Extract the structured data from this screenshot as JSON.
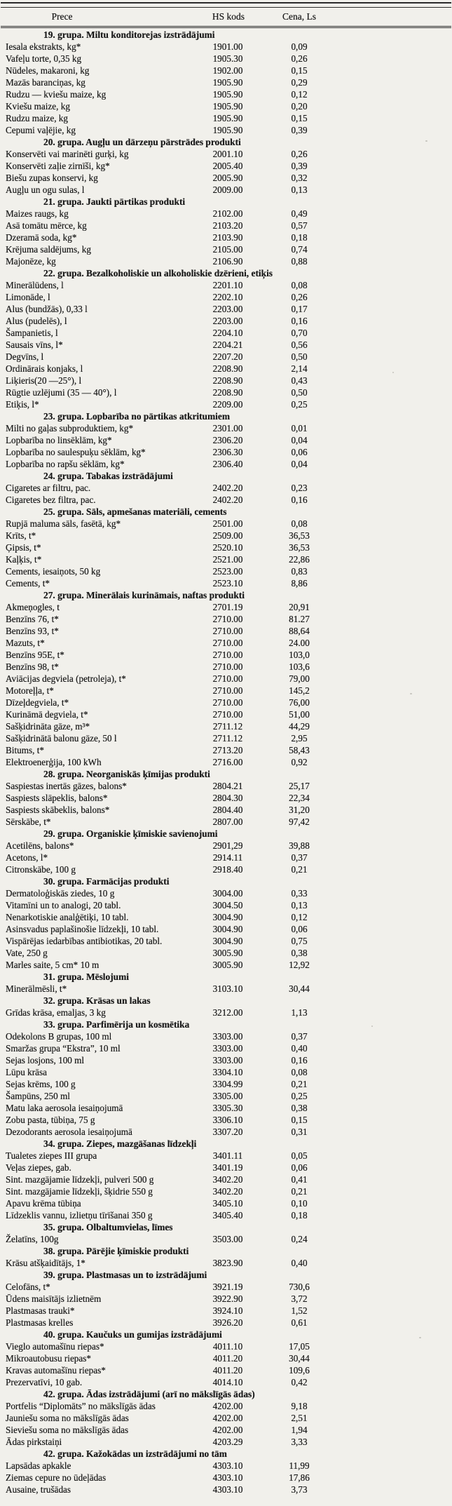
{
  "table": {
    "columns": {
      "product": "Prece",
      "hs": "HS kods",
      "price": "Cena, Ls"
    },
    "rows": [
      {
        "type": "group",
        "label": "19. grupa. Miltu konditorejas izstrādājumi"
      },
      {
        "type": "item",
        "name": "Iesala ekstrakts, kg*",
        "hs": "1901.00",
        "price": "0,09"
      },
      {
        "type": "item",
        "name": "Vafeļu torte, 0,35 kg",
        "hs": "1905.30",
        "price": "0,26"
      },
      {
        "type": "item",
        "name": "Nūdeles, makaroni, kg",
        "hs": "1902.00",
        "price": "0,15"
      },
      {
        "type": "item",
        "name": "Mazās baranciņas, kg",
        "hs": "1905.90",
        "price": "0,29"
      },
      {
        "type": "item",
        "name": "Rudzu — kviešu maize, kg",
        "hs": "1905.90",
        "price": "0,12"
      },
      {
        "type": "item",
        "name": "Kviešu maize, kg",
        "hs": "1905.90",
        "price": "0,20"
      },
      {
        "type": "item",
        "name": "Rudzu maize, kg",
        "hs": "1905.90",
        "price": "0,15"
      },
      {
        "type": "item",
        "name": "Cepumi vaļējie, kg",
        "hs": "1905.90",
        "price": "0,39"
      },
      {
        "type": "group",
        "label": "20. grupa. Augļu un dārzeņu pārstrādes produkti"
      },
      {
        "type": "item",
        "name": "Konservēti vai marinēti gurķi, kg",
        "hs": "2001.10",
        "price": "0,26"
      },
      {
        "type": "item",
        "name": "Konservēti zaļie zirnīši, kg*",
        "hs": "2005.40",
        "price": "0,39"
      },
      {
        "type": "item",
        "name": "Biešu zupas konservi, kg",
        "hs": "2005.90",
        "price": "0,32"
      },
      {
        "type": "item",
        "name": "Augļu un ogu sulas, l",
        "hs": "2009.00",
        "price": "0,13"
      },
      {
        "type": "group",
        "label": "21. grupa. Jaukti pārtikas produkti"
      },
      {
        "type": "item",
        "name": "Maizes raugs, kg",
        "hs": "2102.00",
        "price": "0,49"
      },
      {
        "type": "item",
        "name": "Asā tomātu mērce, kg",
        "hs": "2103.20",
        "price": "0,57"
      },
      {
        "type": "item",
        "name": "Dzeramā soda, kg*",
        "hs": "2103.90",
        "price": "0,18"
      },
      {
        "type": "item",
        "name": "Krējuma saldējums, kg",
        "hs": "2105.00",
        "price": "0,74"
      },
      {
        "type": "item",
        "name": "Majonēze, kg",
        "hs": "2106.90",
        "price": "0,88"
      },
      {
        "type": "group",
        "label": "22. grupa. Bezalkoholiskie un alkoholiskie dzērieni, etiķis"
      },
      {
        "type": "item",
        "name": "Minerālūdens, l",
        "hs": "2201.10",
        "price": "0,08"
      },
      {
        "type": "item",
        "name": "Limonāde, l",
        "hs": "2202.10",
        "price": "0,26"
      },
      {
        "type": "item",
        "name": "Alus (bundžās), 0,33 l",
        "hs": "2203.00",
        "price": "0,17"
      },
      {
        "type": "item",
        "name": "Alus (pudelēs), l",
        "hs": "2203.00",
        "price": "0,16"
      },
      {
        "type": "item",
        "name": "Šampanietis, l",
        "hs": "2204.10",
        "price": "0,70"
      },
      {
        "type": "item",
        "name": "Sausais vīns, l*",
        "hs": "2204.21",
        "price": "0,56"
      },
      {
        "type": "item",
        "name": "Degvīns, l",
        "hs": "2207.20",
        "price": "0,50"
      },
      {
        "type": "item",
        "name": "Ordinārais konjaks, l",
        "hs": "2208.90",
        "price": "2,14"
      },
      {
        "type": "item",
        "name": "Liķieris(20 —25°), l",
        "hs": "2208.90",
        "price": "0,43"
      },
      {
        "type": "item",
        "name": "Rūgtie uzlējumi (35 — 40°), l",
        "hs": "2208.90",
        "price": "0,50"
      },
      {
        "type": "item",
        "name": "Etiķis, l*",
        "hs": "2209.00",
        "price": "0,25"
      },
      {
        "type": "group",
        "label": "23. grupa. Lopbarība no pārtikas atkritumiem"
      },
      {
        "type": "item",
        "name": "Milti no gaļas subproduktiem, kg*",
        "hs": "2301.00",
        "price": "0,01"
      },
      {
        "type": "item",
        "name": "Lopbarība no linsēklām, kg*",
        "hs": "2306.20",
        "price": "0,04"
      },
      {
        "type": "item",
        "name": "Lopbarība no saulespuķu sēklām, kg*",
        "hs": "2306.30",
        "price": "0,06"
      },
      {
        "type": "item",
        "name": "Lopbarība no rapšu sēklām, kg*",
        "hs": "2306.40",
        "price": "0,04"
      },
      {
        "type": "group",
        "label": "24. grupa. Tabakas izstrādājumi"
      },
      {
        "type": "item",
        "name": "Cigaretes ar filtru, pac.",
        "hs": "2402.20",
        "price": "0,23"
      },
      {
        "type": "item",
        "name": "Cigaretes bez filtra, pac.",
        "hs": "2402.20",
        "price": "0,16"
      },
      {
        "type": "group",
        "label": "25. grupa. Sāls, apmešanas materiāli, cements"
      },
      {
        "type": "item",
        "name": "Rupjā maluma sāls, fasētā, kg*",
        "hs": "2501.00",
        "price": "0,08"
      },
      {
        "type": "item",
        "name": "Krīts, t*",
        "hs": "2509.00",
        "price": "36,53"
      },
      {
        "type": "item",
        "name": "Ģipsis, t*",
        "hs": "2520.10",
        "price": "36,53"
      },
      {
        "type": "item",
        "name": "Kaļķis, t*",
        "hs": "2521.00",
        "price": "22,86"
      },
      {
        "type": "item",
        "name": "Cements, iesaiņots, 50 kg",
        "hs": "2523.00",
        "price": "0,83"
      },
      {
        "type": "item",
        "name": "Cements, t*",
        "hs": "2523.10",
        "price": "8,86"
      },
      {
        "type": "group",
        "label": "27. grupa. Minerālais kurināmais, naftas produkti"
      },
      {
        "type": "item",
        "name": "Akmeņogles, t",
        "hs": "2701.19",
        "price": "20,91"
      },
      {
        "type": "item",
        "name": "Benzīns 76, t*",
        "hs": "2710.00",
        "price": "81.27"
      },
      {
        "type": "item",
        "name": "Benzīns 93, t*",
        "hs": "2710.00",
        "price": "88,64"
      },
      {
        "type": "item",
        "name": "Mazuts, t*",
        "hs": "2710.00",
        "price": "24.00"
      },
      {
        "type": "item",
        "name": "Benzīns 95E, t*",
        "hs": "2710.00",
        "price": "103,0"
      },
      {
        "type": "item",
        "name": "Benzīns 98, t*",
        "hs": "2710.00",
        "price": "103,6"
      },
      {
        "type": "item",
        "name": "Aviācijas degviela (petroleja), t*",
        "hs": "2710.00",
        "price": "79,00"
      },
      {
        "type": "item",
        "name": "Motoreļļa, t*",
        "hs": "2710.00",
        "price": "145,2"
      },
      {
        "type": "item",
        "name": "Dīzeļdegviela, t*",
        "hs": "2710.00",
        "price": "76,00"
      },
      {
        "type": "item",
        "name": "Kurināmā degviela, t*",
        "hs": "2710.00",
        "price": "51,00"
      },
      {
        "type": "item",
        "name": "Sašķidrināta gāze, m³*",
        "hs": "2711.12",
        "price": "44,29"
      },
      {
        "type": "item",
        "name": "Sašķidrinātā balonu gāze, 50 l",
        "hs": "2711.12",
        "price": "2,95"
      },
      {
        "type": "item",
        "name": "Bitums, t*",
        "hs": "2713.20",
        "price": "58,43"
      },
      {
        "type": "item",
        "name": "Elektroenerģija, 100 kWh",
        "hs": "2716.00",
        "price": "0,92"
      },
      {
        "type": "group",
        "label": "28. grupa. Neorganiskās ķīmijas produkti"
      },
      {
        "type": "item",
        "name": "Saspiestas inertās gāzes, balons*",
        "hs": "2804.21",
        "price": "25,17"
      },
      {
        "type": "item",
        "name": "Saspiests slāpeklis, balons*",
        "hs": "2804.30",
        "price": "22,34"
      },
      {
        "type": "item",
        "name": "Saspiests skābeklis, balons*",
        "hs": "2804.40",
        "price": "31,20"
      },
      {
        "type": "item",
        "name": "Sērskābe, t*",
        "hs": "2807.00",
        "price": "97,42"
      },
      {
        "type": "group",
        "label": "29. grupa. Organiskie ķīmiskie savienojumi"
      },
      {
        "type": "item",
        "name": "Acetilēns, balons*",
        "hs": "2901,29",
        "price": "39,88"
      },
      {
        "type": "item",
        "name": "Acetons, l*",
        "hs": "2914.11",
        "price": "0,37"
      },
      {
        "type": "item",
        "name": "Citronskābe, 100 g",
        "hs": "2918.40",
        "price": "0,21"
      },
      {
        "type": "group",
        "label": "30. grupa. Farmācijas produkti"
      },
      {
        "type": "item",
        "name": "Dermatoloģiskās ziedes, 10 g",
        "hs": "3004.00",
        "price": "0,33"
      },
      {
        "type": "item",
        "name": "Vitamīni un to analogi, 20 tabl.",
        "hs": "3004.50",
        "price": "0,13"
      },
      {
        "type": "item",
        "name": "Nenarkotiskie analģētiķi, 10 tabl.",
        "hs": "3004.90",
        "price": "0,12"
      },
      {
        "type": "item",
        "name": "Asinsvadus paplašinošie līdzekļi, 10 tabl.",
        "hs": "3004.90",
        "price": "0,06"
      },
      {
        "type": "item",
        "name": "Vispārējas iedarbības antibiotikas, 20 tabl.",
        "hs": "3004.90",
        "price": "0,75"
      },
      {
        "type": "item",
        "name": "Vate, 250 g",
        "hs": "3005.90",
        "price": "0,38"
      },
      {
        "type": "item",
        "name": "Marles saite, 5 cm* 10 m",
        "hs": "3005.90",
        "price": "12,92"
      },
      {
        "type": "group",
        "label": "31. grupa. Mēslojumi"
      },
      {
        "type": "item",
        "name": "Minerālmēsli, t*",
        "hs": "3103.10",
        "price": "30,44"
      },
      {
        "type": "group",
        "label": "32. grupa. Krāsas un lakas"
      },
      {
        "type": "item",
        "name": "Grīdas krāsa, emaljas, 3 kg",
        "hs": "3212.00",
        "price": "1,13"
      },
      {
        "type": "group",
        "label": "33. grupa. Parfimērija un kosmētika"
      },
      {
        "type": "item",
        "name": "Odekolons B grupas, 100 ml",
        "hs": "3303.00",
        "price": "0,37"
      },
      {
        "type": "item",
        "name": "Smaržas grupa “Ekstra”, 10 ml",
        "hs": "3303.00",
        "price": "0,40"
      },
      {
        "type": "item",
        "name": "Sejas losjons, 100 ml",
        "hs": "3303.00",
        "price": "0,16"
      },
      {
        "type": "item",
        "name": "Lūpu krāsa",
        "hs": "3304.10",
        "price": "0,08"
      },
      {
        "type": "item",
        "name": "Sejas krēms, 100 g",
        "hs": "3304.99",
        "price": "0,21"
      },
      {
        "type": "item",
        "name": "Šampūns, 250 ml",
        "hs": "3305.00",
        "price": "0,25"
      },
      {
        "type": "item",
        "name": "Matu laka aerosola iesaiņojumā",
        "hs": "3305.30",
        "price": "0,38"
      },
      {
        "type": "item",
        "name": "Zobu pasta, tūbiņa, 75 g",
        "hs": "3306.10",
        "price": "0,15"
      },
      {
        "type": "item",
        "name": "Dezodorants aerosola iesaiņojumā",
        "hs": "3307.20",
        "price": "0,31"
      },
      {
        "type": "group",
        "label": "34. grupa. Ziepes, mazgāšanas līdzekļi"
      },
      {
        "type": "item",
        "name": "Tualetes ziepes III grupa",
        "hs": "3401.11",
        "price": "0,05"
      },
      {
        "type": "item",
        "name": "Veļas ziepes, gab.",
        "hs": "3401.19",
        "price": "0,06"
      },
      {
        "type": "item",
        "name": "Sint. mazgājamie līdzekļi, pulveri 500 g",
        "hs": "3402.20",
        "price": "0,41"
      },
      {
        "type": "item",
        "name": "Sint. mazgājamie līdzekļi, šķidrie 550 g",
        "hs": "3402.20",
        "price": "0,21"
      },
      {
        "type": "item",
        "name": "Apavu krēma tūbiņa",
        "hs": "3405.10",
        "price": "0,10"
      },
      {
        "type": "item",
        "name": "Līdzeklis vannu, izlietņu tīrīšanai 350 g",
        "hs": "3405.40",
        "price": "0,18"
      },
      {
        "type": "group",
        "label": "35. grupa. Olbaltumvielas, līmes"
      },
      {
        "type": "item",
        "name": "Želatīns, 100g",
        "hs": "3503.00",
        "price": "0,24"
      },
      {
        "type": "group",
        "label": "38. grupa. Pārējie ķīmiskie produkti"
      },
      {
        "type": "item",
        "name": "Krāsu atšķaidītājs, 1*",
        "hs": "3823.90",
        "price": "0,40"
      },
      {
        "type": "group",
        "label": "39. grupa. Plastmasas un to izstrādājumi"
      },
      {
        "type": "item",
        "name": "Celofāns, t*",
        "hs": "3921.19",
        "price": "730,6"
      },
      {
        "type": "item",
        "name": "Ūdens maisītājs izlietnēm",
        "hs": "3922.90",
        "price": "3,72"
      },
      {
        "type": "item",
        "name": "Plastmasas trauki*",
        "hs": "3924.10",
        "price": "1,52"
      },
      {
        "type": "item",
        "name": "Plastmasas krelles",
        "hs": "3926.20",
        "price": "0,61"
      },
      {
        "type": "group",
        "label": "40. grupa. Kaučuks un gumijas izstrādājumi"
      },
      {
        "type": "item",
        "name": "Vieglo automašīnu riepas*",
        "hs": "4011.10",
        "price": "17,05"
      },
      {
        "type": "item",
        "name": "Mikroautobusu riepas*",
        "hs": "4011.20",
        "price": "30,44"
      },
      {
        "type": "item",
        "name": "Kravas automašīnu riepas*",
        "hs": "4011.20",
        "price": "109,6"
      },
      {
        "type": "item",
        "name": "Prezervatīvi, 10 gab.",
        "hs": "4014.10",
        "price": "0,42"
      },
      {
        "type": "group",
        "label": "42. grupa. Ādas izstrādājumi (arī no mākslīgās ādas)"
      },
      {
        "type": "item",
        "name": "Portfelis “Diplomāts” no mākslīgās ādas",
        "hs": "4202.00",
        "price": "9,18"
      },
      {
        "type": "item",
        "name": "Jauniešu soma no mākslīgās ādas",
        "hs": "4202.00",
        "price": "2,51"
      },
      {
        "type": "item",
        "name": "Sieviešu soma no mākslīgās ādas",
        "hs": "4202.00",
        "price": "1,94"
      },
      {
        "type": "item",
        "name": "Ādas pirkstaiņi",
        "hs": "4203.29",
        "price": "3,33"
      },
      {
        "type": "group",
        "label": "42. grupa. Kažokādas un izstrādājumi no tām"
      },
      {
        "type": "item",
        "name": "Lapsādas apkakle",
        "hs": "4303.10",
        "price": "11,99"
      },
      {
        "type": "item",
        "name": "Ziemas cepure no ūdeļādas",
        "hs": "4303.10",
        "price": "17,86"
      },
      {
        "type": "item",
        "name": "Ausaine, trušādas",
        "hs": "4303.10",
        "price": "3,73"
      }
    ]
  }
}
